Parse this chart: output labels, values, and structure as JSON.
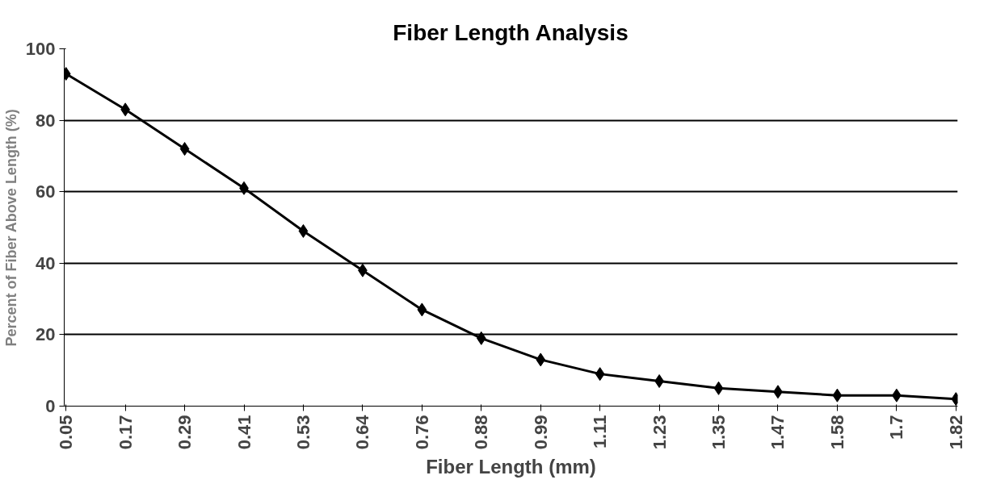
{
  "chart_data": {
    "type": "line",
    "title": "Fiber Length Analysis",
    "xlabel": "Fiber Length (mm)",
    "ylabel": "Percent of Fiber Above Length (%)",
    "categories": [
      "0.05",
      "0.17",
      "0.29",
      "0.41",
      "0.53",
      "0.64",
      "0.76",
      "0.88",
      "0.99",
      "1.11",
      "1.23",
      "1.35",
      "1.47",
      "1.58",
      "1.7",
      "1.82"
    ],
    "series": [
      {
        "color": "#000000",
        "values": [
          93,
          83,
          72,
          61,
          49,
          38,
          27,
          19,
          13,
          9,
          7,
          5,
          4,
          3,
          3,
          2
        ]
      }
    ],
    "ylim": [
      0,
      100
    ],
    "yticks": [
      0,
      20,
      40,
      60,
      80,
      100
    ],
    "grid": "y",
    "marker": "diamond",
    "line_style": "solid"
  }
}
